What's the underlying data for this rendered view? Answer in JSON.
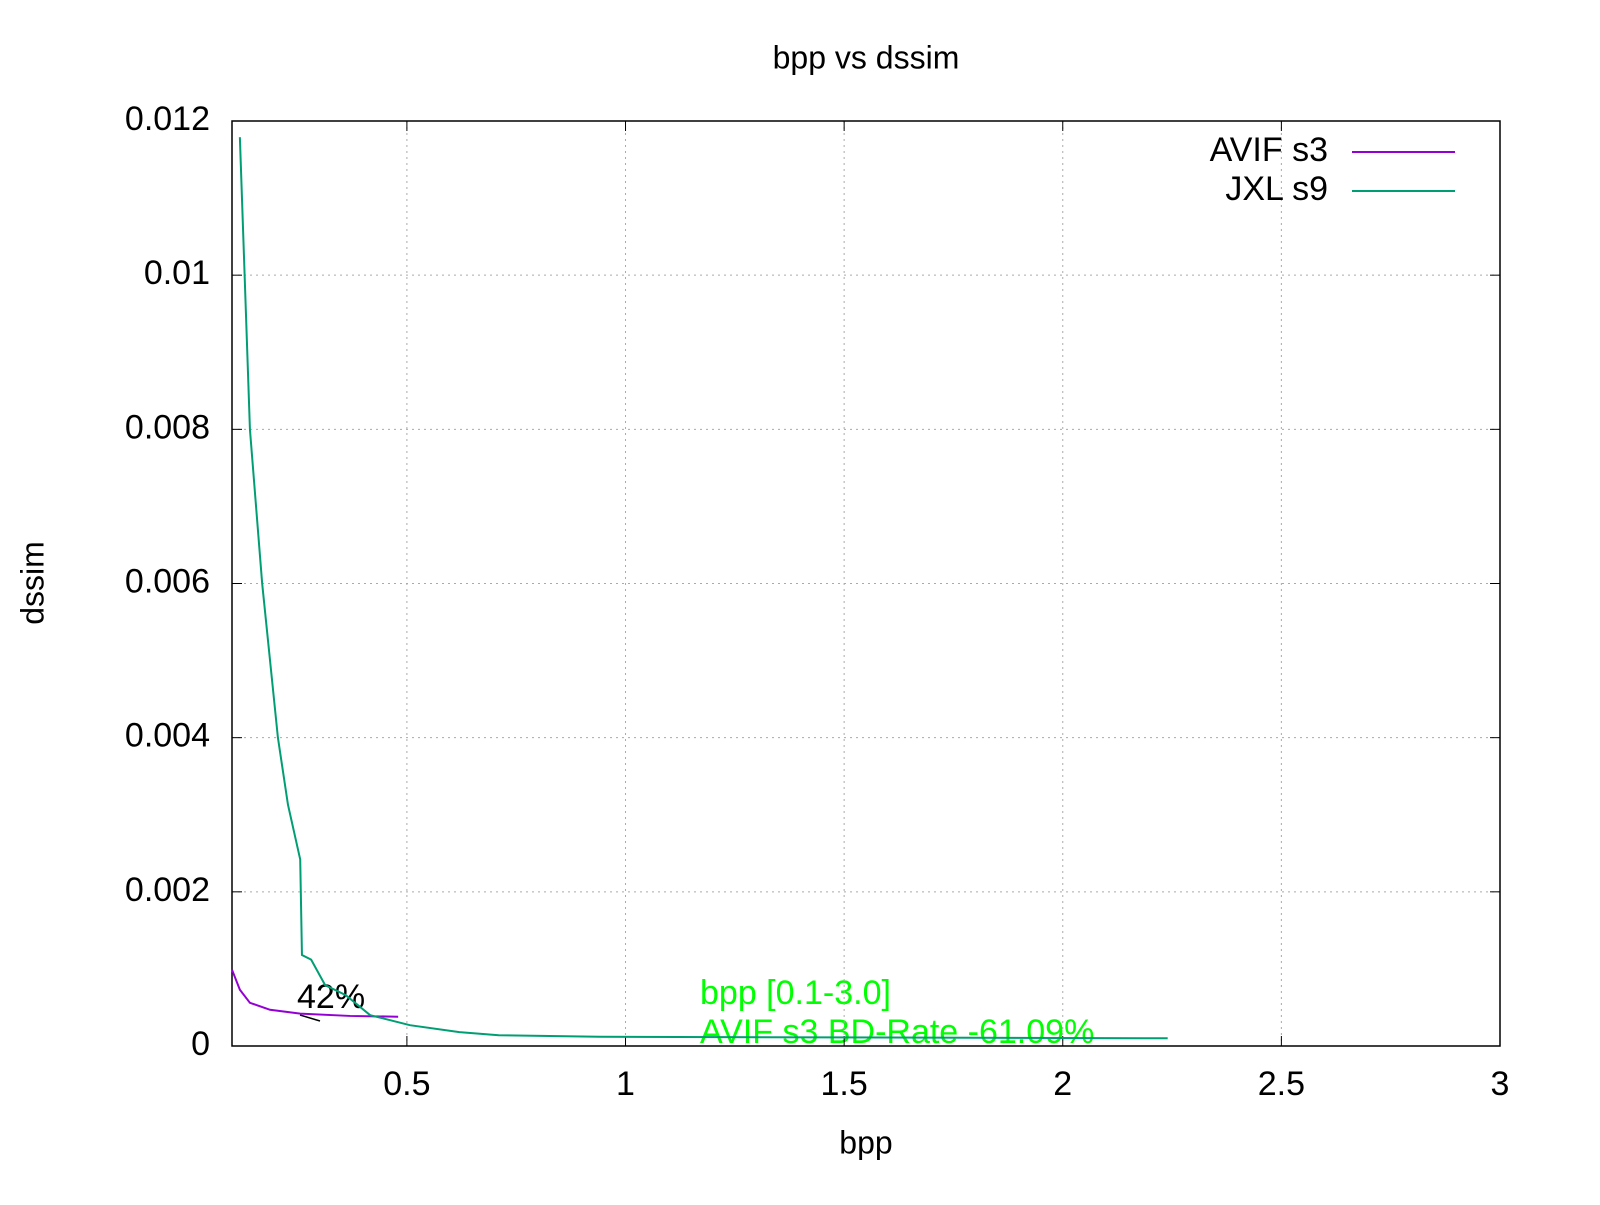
{
  "chart_data": {
    "type": "line",
    "title": "bpp vs dssim",
    "x_label": "bpp",
    "y_label": "dssim",
    "xlim": [
      0.1,
      3
    ],
    "xticks": [
      0.5,
      1,
      1.5,
      2,
      2.5,
      3
    ],
    "ylim": [
      0,
      0.012
    ],
    "yticks": [
      0,
      0.002,
      0.004,
      0.006,
      0.008,
      0.01,
      0.012
    ],
    "grid": true,
    "legend": "top-right",
    "series": [
      {
        "name": "AVIF s3",
        "color": "#9400d3",
        "x": [
          0.1,
          0.118,
          0.141,
          0.187,
          0.256,
          0.37,
          0.48
        ],
        "values": [
          0.00099,
          0.00073,
          0.00056,
          0.00047,
          0.00042,
          0.00039,
          0.00038
        ]
      },
      {
        "name": "JXL s9",
        "color": "#009e73",
        "x": [
          0.118,
          0.141,
          0.169,
          0.205,
          0.228,
          0.256,
          0.26,
          0.281,
          0.313,
          0.36,
          0.416,
          0.507,
          0.62,
          0.71,
          0.94,
          2.24
        ],
        "values": [
          0.01179,
          0.008,
          0.006,
          0.004,
          0.00313,
          0.00242,
          0.00118,
          0.00112,
          0.00079,
          0.00066,
          0.0004,
          0.00027,
          0.00018,
          0.00014,
          0.00012,
          0.0001
        ]
      }
    ],
    "annotations": [
      "42%",
      "bpp [0.1-3.0]",
      "AVIF s3 BD-Rate -61.09%"
    ],
    "annotation_color": "#00ff00"
  }
}
